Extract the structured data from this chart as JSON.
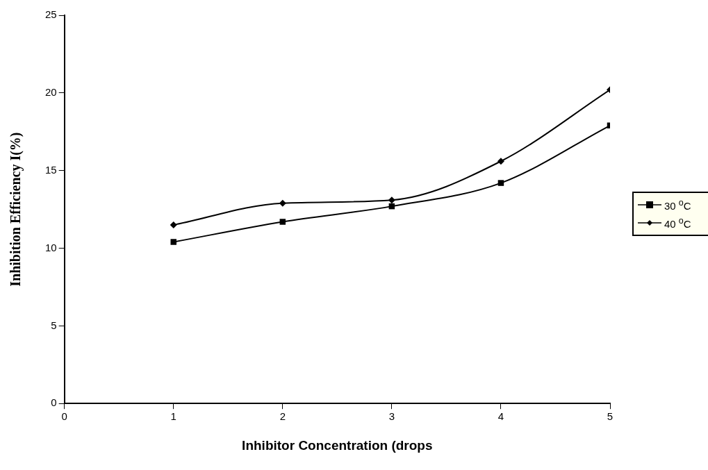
{
  "chart_data": {
    "type": "line",
    "xlabel": "Inhibitor Concentration (drops",
    "ylabel": "Inhibition Efficiency I(%)",
    "x": [
      1,
      2,
      3,
      4,
      5
    ],
    "series": [
      {
        "name": "30 $^{o}$C",
        "color": "#000000",
        "marker": "square",
        "values": [
          10.4,
          11.7,
          12.7,
          14.2,
          17.9
        ]
      },
      {
        "name": "40 $^{o}$C",
        "color": "#000000",
        "marker": "diamond",
        "values": [
          11.5,
          12.9,
          13.1,
          15.6,
          20.2
        ]
      }
    ],
    "xlim": [
      0,
      5
    ],
    "xticks": [
      0,
      1,
      2,
      3,
      4,
      5
    ],
    "ylim": [
      0,
      25
    ],
    "yticks": [
      0,
      5,
      10,
      15,
      20,
      25
    ],
    "grid": false,
    "legend": "right",
    "line_style": "solid"
  }
}
